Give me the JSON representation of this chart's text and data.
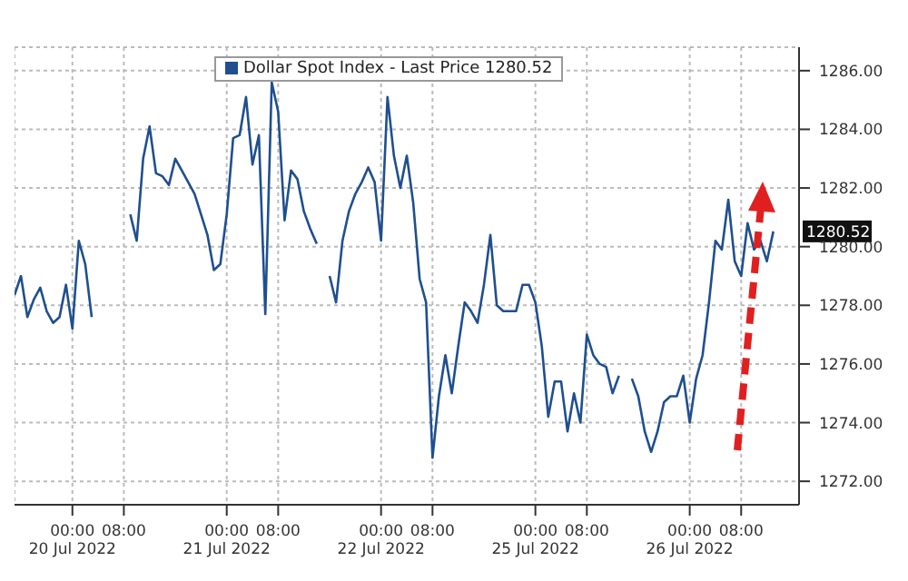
{
  "chart_data": {
    "type": "line",
    "legend": "top",
    "grid": true,
    "line_style": "solid",
    "marker": "none",
    "ylim": [
      1271.2,
      1286.8
    ],
    "categories": [
      null,
      null,
      null,
      null,
      null,
      null,
      null,
      null,
      null,
      "00:00\n20 Jul 2022",
      null,
      null,
      null,
      null,
      null,
      null,
      null,
      "08:00",
      null,
      null,
      null,
      null,
      null,
      null,
      null,
      null,
      null,
      null,
      null,
      null,
      null,
      null,
      null,
      "00:00\n21 Jul 2022",
      null,
      null,
      null,
      null,
      null,
      null,
      null,
      "08:00",
      null,
      null,
      null,
      null,
      null,
      null,
      null,
      null,
      null,
      null,
      null,
      null,
      null,
      null,
      null,
      "00:00\n22 Jul 2022",
      null,
      null,
      null,
      null,
      null,
      null,
      null,
      "08:00",
      null,
      null,
      null,
      null,
      null,
      null,
      null,
      null,
      null,
      null,
      null,
      null,
      null,
      null,
      null,
      "00:00\n25 Jul 2022",
      null,
      null,
      null,
      null,
      null,
      null,
      null,
      "08:00",
      null,
      null,
      null,
      null,
      null,
      null,
      null,
      null,
      null,
      null,
      null,
      null,
      null,
      null,
      null,
      "00:00\n26 Jul 2022",
      null,
      null,
      null,
      null,
      null,
      null,
      null,
      "08:00",
      null,
      null,
      null,
      null,
      null,
      null,
      null,
      null,
      null
    ],
    "yticks": [
      {
        "value": 1272,
        "label": "1272.00"
      },
      {
        "value": 1274,
        "label": "1274.00"
      },
      {
        "value": 1276,
        "label": "1276.00"
      },
      {
        "value": 1278,
        "label": "1278.00"
      },
      {
        "value": 1280,
        "label": "1280.00"
      },
      {
        "value": 1282,
        "label": "1282.00"
      },
      {
        "value": 1284,
        "label": "1284.00"
      },
      {
        "value": 1286,
        "label": "1286.00"
      }
    ],
    "annotations": [
      {
        "text": "1280.52",
        "y": 1280.52
      }
    ],
    "series": [
      {
        "name": "Dollar Spot Index - Last Price 1280.52",
        "color": "#1f4f8f",
        "values": [
          1278.35,
          1279.0,
          1277.6,
          1278.2,
          1278.6,
          1277.8,
          1277.4,
          1277.6,
          1278.7,
          1277.2,
          1280.2,
          1279.4,
          1277.6,
          null,
          null,
          null,
          null,
          null,
          1281.1,
          1280.2,
          1283.0,
          1284.1,
          1282.5,
          1282.4,
          1282.1,
          1283.0,
          1282.6,
          1282.2,
          1281.8,
          1281.1,
          1280.4,
          1279.2,
          1279.4,
          1281.1,
          1283.7,
          1283.8,
          1285.1,
          1282.8,
          1283.8,
          1277.7,
          1285.6,
          1284.6,
          1280.9,
          1282.6,
          1282.3,
          1281.2,
          1280.6,
          1280.1,
          null,
          1279.0,
          1278.1,
          1280.2,
          1281.2,
          1281.8,
          1282.2,
          1282.7,
          1282.2,
          1280.2,
          1285.1,
          1283.1,
          1282.0,
          1283.1,
          1281.5,
          1278.9,
          1278.1,
          1272.8,
          1274.9,
          1276.3,
          1275.0,
          1276.6,
          1278.1,
          1277.8,
          1277.4,
          1278.7,
          1280.4,
          1278.0,
          1277.8,
          1277.8,
          1277.8,
          1278.7,
          1278.7,
          1278.1,
          1276.6,
          1274.2,
          1275.4,
          1275.4,
          1273.7,
          1275.0,
          1274.0,
          1277.0,
          1276.3,
          1276.0,
          1275.9,
          1275.0,
          1275.6,
          null,
          1275.5,
          1274.9,
          1273.7,
          1273.0,
          1273.7,
          1274.7,
          1274.9,
          1274.9,
          1275.6,
          1274.0,
          1275.5,
          1276.3,
          1278.1,
          1280.2,
          1279.9,
          1281.6,
          1279.5,
          1279.0,
          1280.8,
          1279.9,
          1280.2,
          1279.5,
          1280.52,
          null,
          null,
          null,
          null
        ]
      }
    ]
  }
}
